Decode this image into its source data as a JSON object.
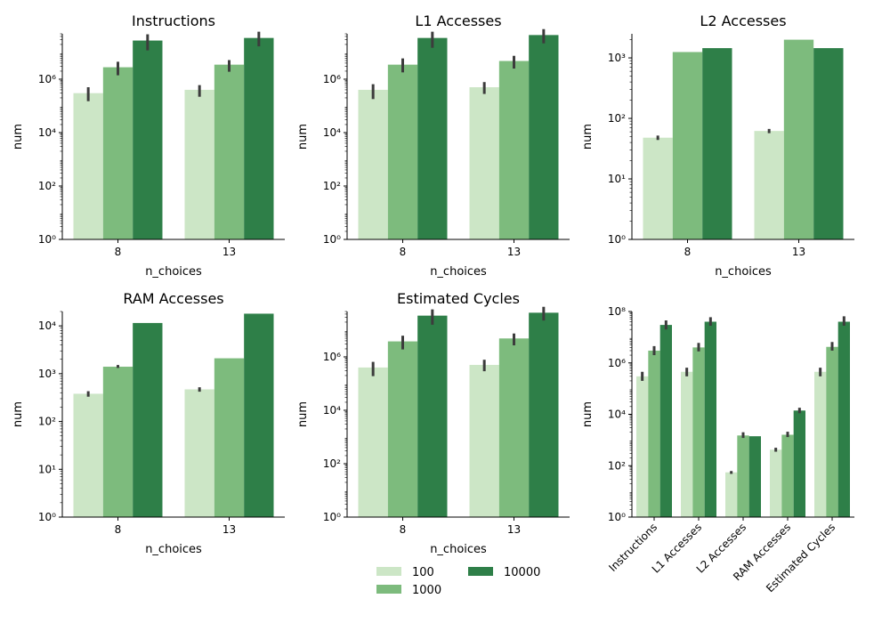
{
  "legend": {
    "items": [
      {
        "label": "100",
        "color": "#cce6c6"
      },
      {
        "label": "1000",
        "color": "#7dbb7d"
      },
      {
        "label": "10000",
        "color": "#2e7f48"
      }
    ],
    "placement": "bottom-center"
  },
  "errorbar_color": "#3c3c3c",
  "chart_data": [
    {
      "type": "bar",
      "title": "Instructions",
      "xlabel": "n_choices",
      "ylabel": "num",
      "yscale": "log",
      "ylim": [
        1,
        50000000
      ],
      "yticks": [
        1,
        100,
        10000,
        1000000
      ],
      "categories": [
        "8",
        "13"
      ],
      "series": [
        {
          "name": "100",
          "values": [
            300000,
            400000
          ],
          "err": [
            [
              150000,
              500000
            ],
            [
              220000,
              600000
            ]
          ]
        },
        {
          "name": "1000",
          "values": [
            2800000,
            3500000
          ],
          "err": [
            [
              1400000,
              4500000
            ],
            [
              1900000,
              5200000
            ]
          ]
        },
        {
          "name": "10000",
          "values": [
            28000000,
            35000000
          ],
          "err": [
            [
              12000000,
              48000000
            ],
            [
              17000000,
              60000000
            ]
          ]
        }
      ]
    },
    {
      "type": "bar",
      "title": "L1 Accesses",
      "xlabel": "n_choices",
      "ylabel": "num",
      "yscale": "log",
      "ylim": [
        1,
        50000000
      ],
      "yticks": [
        1,
        100,
        10000,
        1000000
      ],
      "categories": [
        "8",
        "13"
      ],
      "series": [
        {
          "name": "100",
          "values": [
            400000,
            500000
          ],
          "err": [
            [
              180000,
              650000
            ],
            [
              280000,
              780000
            ]
          ]
        },
        {
          "name": "1000",
          "values": [
            3500000,
            4800000
          ],
          "err": [
            [
              1800000,
              6000000
            ],
            [
              2500000,
              7500000
            ]
          ]
        },
        {
          "name": "10000",
          "values": [
            35000000,
            45000000
          ],
          "err": [
            [
              15000000,
              60000000
            ],
            [
              22000000,
              75000000
            ]
          ]
        }
      ]
    },
    {
      "type": "bar",
      "title": "L2 Accesses",
      "xlabel": "n_choices",
      "ylabel": "num",
      "yscale": "log",
      "ylim": [
        1,
        2500
      ],
      "yticks": [
        1,
        10,
        100,
        1000
      ],
      "categories": [
        "8",
        "13"
      ],
      "series": [
        {
          "name": "100",
          "values": [
            48,
            62
          ],
          "err": [
            [
              44,
              52
            ],
            [
              57,
              67
            ]
          ]
        },
        {
          "name": "1000",
          "values": [
            1250,
            2000
          ],
          "err": [
            [
              1250,
              1250
            ],
            [
              2000,
              2000
            ]
          ]
        },
        {
          "name": "10000",
          "values": [
            1450,
            1450
          ],
          "err": [
            [
              1450,
              1450
            ],
            [
              1450,
              1450
            ]
          ]
        }
      ]
    },
    {
      "type": "bar",
      "title": "RAM Accesses",
      "xlabel": "n_choices",
      "ylabel": "num",
      "yscale": "log",
      "ylim": [
        1,
        20000
      ],
      "yticks": [
        1,
        10,
        100,
        1000,
        10000
      ],
      "categories": [
        "8",
        "13"
      ],
      "series": [
        {
          "name": "100",
          "values": [
            380,
            470
          ],
          "err": [
            [
              330,
              430
            ],
            [
              420,
              520
            ]
          ]
        },
        {
          "name": "1000",
          "values": [
            1400,
            2100
          ],
          "err": [
            [
              1320,
              1520
            ],
            [
              2100,
              2100
            ]
          ]
        },
        {
          "name": "10000",
          "values": [
            11500,
            18000
          ],
          "err": [
            [
              11500,
              11500
            ],
            [
              18000,
              18000
            ]
          ]
        }
      ]
    },
    {
      "type": "bar",
      "title": "Estimated Cycles",
      "xlabel": "n_choices",
      "ylabel": "num",
      "yscale": "log",
      "ylim": [
        1,
        50000000
      ],
      "yticks": [
        1,
        100,
        10000,
        1000000
      ],
      "categories": [
        "8",
        "13"
      ],
      "series": [
        {
          "name": "100",
          "values": [
            400000,
            500000
          ],
          "err": [
            [
              190000,
              650000
            ],
            [
              290000,
              780000
            ]
          ]
        },
        {
          "name": "1000",
          "values": [
            3800000,
            4900000
          ],
          "err": [
            [
              1900000,
              6200000
            ],
            [
              2700000,
              7500000
            ]
          ]
        },
        {
          "name": "10000",
          "values": [
            35000000,
            45000000
          ],
          "err": [
            [
              16000000,
              60000000
            ],
            [
              23000000,
              75000000
            ]
          ]
        }
      ]
    },
    {
      "type": "bar",
      "title": "",
      "xlabel": "",
      "ylabel": "num",
      "yscale": "log",
      "ylim": [
        1,
        100000000
      ],
      "yticks": [
        1,
        100,
        10000,
        1000000,
        100000000
      ],
      "categories": [
        "Instructions",
        "L1 Accesses",
        "L2 Accesses",
        "RAM Accesses",
        "Estimated Cycles"
      ],
      "rotate_labels": true,
      "series": [
        {
          "name": "100",
          "values": [
            300000,
            450000,
            55,
            420,
            450000
          ],
          "err": [
            [
              200000,
              450000
            ],
            [
              300000,
              650000
            ],
            [
              48,
              62
            ],
            [
              350,
              500
            ],
            [
              300000,
              650000
            ]
          ]
        },
        {
          "name": "1000",
          "values": [
            3000000,
            4000000,
            1500,
            1600,
            4200000
          ],
          "err": [
            [
              2000000,
              4500000
            ],
            [
              2800000,
              6000000
            ],
            [
              1200,
              2000
            ],
            [
              1300,
              2100
            ],
            [
              3000000,
              6500000
            ]
          ]
        },
        {
          "name": "10000",
          "values": [
            30000000,
            40000000,
            1400,
            14000,
            40000000
          ],
          "err": [
            [
              20000000,
              45000000
            ],
            [
              28000000,
              60000000
            ],
            [
              1400,
              1400
            ],
            [
              11000,
              18000
            ],
            [
              28000000,
              65000000
            ]
          ]
        }
      ]
    }
  ]
}
